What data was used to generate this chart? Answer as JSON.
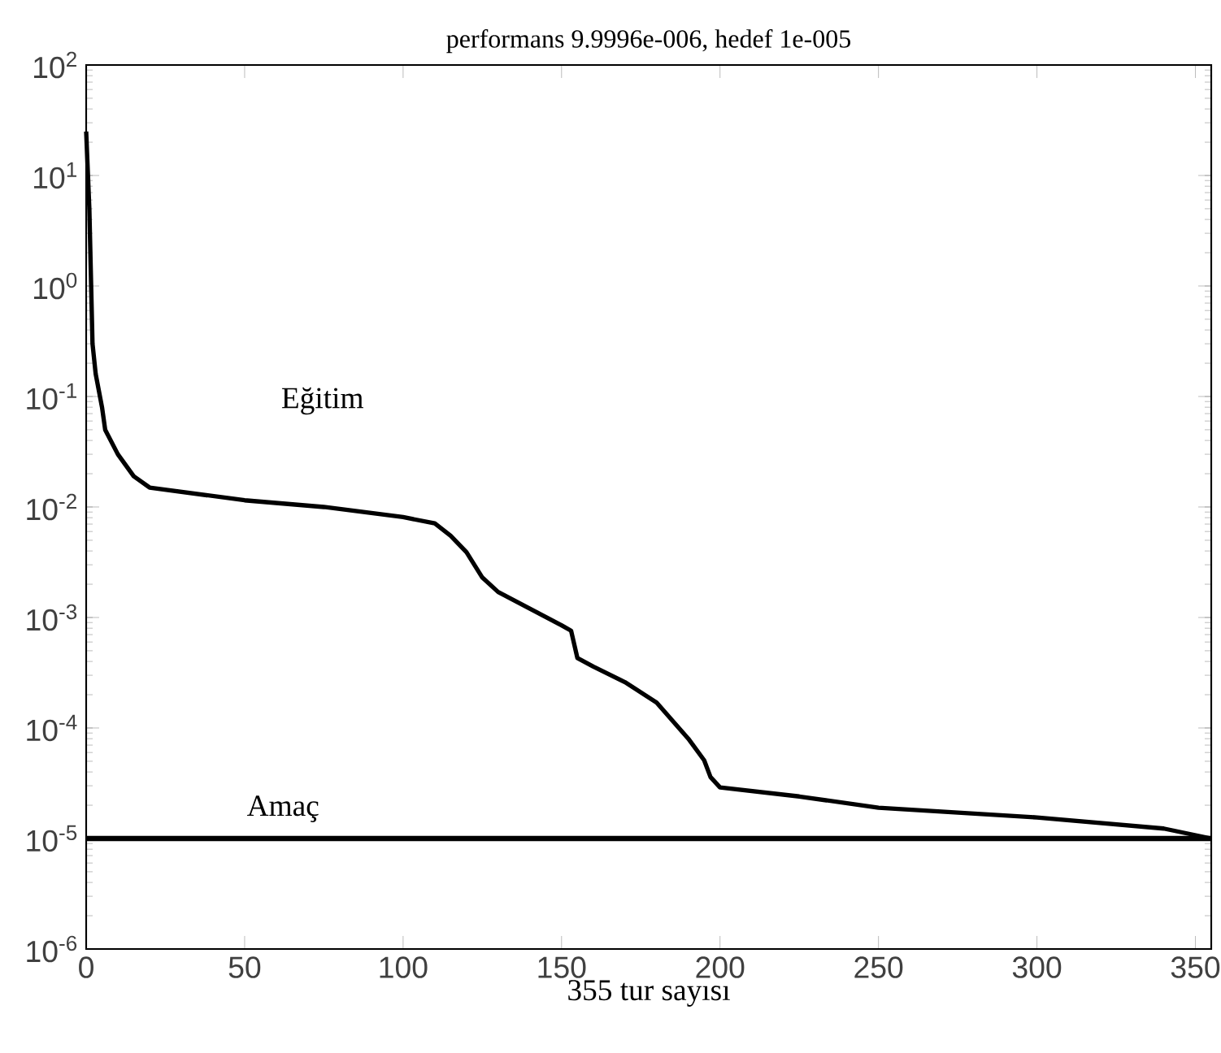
{
  "chart_data": {
    "type": "line",
    "title": "performans  9.9996e-006, hedef  1e-005",
    "xlabel": "355  tur sayısı",
    "xlim": [
      0,
      355
    ],
    "ylim": [
      1e-06,
      100
    ],
    "log": "y",
    "grid": false,
    "legend": false,
    "xticks": [
      0,
      50,
      100,
      150,
      200,
      250,
      300,
      350
    ],
    "yticks": [
      {
        "value": 1e-06,
        "label": "10$^{-6}$"
      },
      {
        "value": 1e-05,
        "label": "10$^{-5}$"
      },
      {
        "value": 0.0001,
        "label": "10$^{-4}$"
      },
      {
        "value": 0.001,
        "label": "10$^{-3}$"
      },
      {
        "value": 0.01,
        "label": "10$^{-2}$"
      },
      {
        "value": 0.1,
        "label": "10$^{-1}$"
      },
      {
        "value": 1,
        "label": "10$^{0}$"
      },
      {
        "value": 10,
        "label": "10$^{1}$"
      },
      {
        "value": 100,
        "label": "10$^{2}$"
      }
    ],
    "series": [
      {
        "name": "Eğitim",
        "color": "#000000",
        "line_style": "solid",
        "x": [
          0,
          1,
          2,
          3,
          5,
          6,
          10,
          15,
          20,
          50,
          75,
          100,
          110,
          115,
          120,
          125,
          130,
          140,
          150,
          153,
          155,
          160,
          170,
          180,
          190,
          195,
          197,
          200,
          225,
          250,
          300,
          340,
          355
        ],
        "values": [
          25,
          5,
          0.3,
          0.16,
          0.08,
          0.05,
          0.03,
          0.019,
          0.015,
          0.0115,
          0.01,
          0.0081,
          0.0071,
          0.0055,
          0.0039,
          0.0023,
          0.0017,
          0.0012,
          0.00085,
          0.00076,
          0.00043,
          0.00036,
          0.00026,
          0.00017,
          8e-05,
          5.1e-05,
          3.6e-05,
          2.9e-05,
          2.4e-05,
          1.9e-05,
          1.55e-05,
          1.23e-05,
          9.9996e-06
        ]
      }
    ],
    "ref_lines": [
      {
        "axis": "y",
        "value": 1e-05,
        "label": "Amaç",
        "color": "#000000",
        "line_style": "solid"
      }
    ]
  }
}
